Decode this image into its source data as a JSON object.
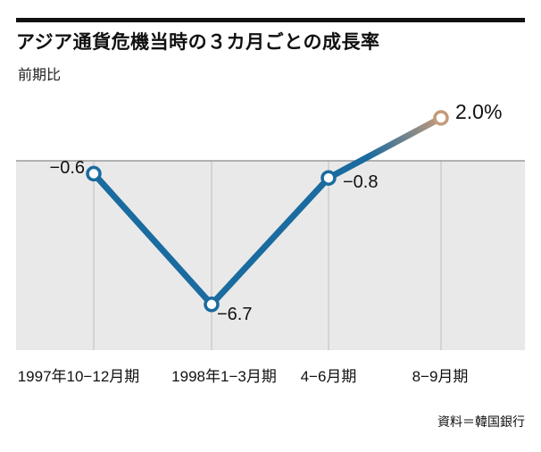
{
  "title": "アジア通貨危機当時の３カ月ごとの成長率",
  "subtitle": "前期比",
  "source": "資料＝韓国銀行",
  "chart_data": {
    "type": "line",
    "title": "アジア通貨危機当時の３カ月ごとの成長率",
    "note": "前期比",
    "categories": [
      "1997年10−12月期",
      "1998年1−3月期",
      "4−6月期",
      "8−9月期"
    ],
    "values": [
      -0.6,
      -6.7,
      -0.8,
      2.0
    ],
    "point_labels": [
      "−0.6",
      "−6.7",
      "−0.8",
      "2.0%"
    ],
    "unit": "%",
    "baseline": 0,
    "ylim": [
      -8,
      3
    ],
    "grid": "vertical-ticks-below-zero",
    "legend": "none",
    "colors": {
      "line": "#1a6b9f",
      "line_end": "#c49a7a",
      "zero_line": "#9a9a9a",
      "below_zero_fill": "#e9e9e9",
      "tick_line": "#c0c0c0",
      "marker_fill": "#ffffff"
    },
    "source": "資料＝韓国銀行"
  }
}
